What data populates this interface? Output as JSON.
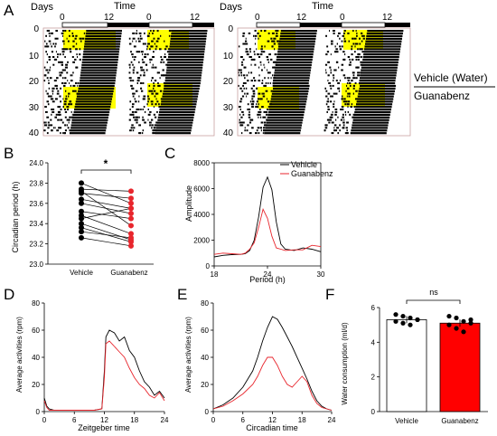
{
  "panels": {
    "A": "A",
    "B": "B",
    "C": "C",
    "D": "D",
    "E": "E",
    "F": "F"
  },
  "actogram": {
    "days_label": "Days",
    "time_label": "Time",
    "time_ticks": [
      "0",
      "12"
    ],
    "day_ticks": [
      "0",
      "10",
      "20",
      "30",
      "40"
    ],
    "legend_vehicle": "Vehicle (Water)",
    "legend_guanabenz": "Guanabenz",
    "yellow_color": "#ffff00"
  },
  "chart_data": [
    {
      "panel": "B",
      "type": "scatter",
      "title": "",
      "xlabel": "",
      "ylabel": "Circadian period (h)",
      "ylim": [
        23.0,
        24.0
      ],
      "yticks": [
        "24.0",
        "23.8",
        "23.6",
        "23.4",
        "23.2",
        "23.0"
      ],
      "categories": [
        "Vehicle",
        "Guanabenz"
      ],
      "significance": "*",
      "paired_values": [
        [
          23.8,
          23.6
        ],
        [
          23.74,
          23.72
        ],
        [
          23.72,
          23.38
        ],
        [
          23.7,
          23.65
        ],
        [
          23.64,
          23.55
        ],
        [
          23.6,
          23.5
        ],
        [
          23.52,
          23.45
        ],
        [
          23.48,
          23.3
        ],
        [
          23.45,
          23.55
        ],
        [
          23.4,
          23.24
        ],
        [
          23.36,
          23.22
        ],
        [
          23.32,
          23.26
        ],
        [
          23.26,
          23.18
        ]
      ],
      "colors": {
        "vehicle": "#000000",
        "guanabenz": "#e8262d"
      }
    },
    {
      "panel": "C",
      "type": "line",
      "title": "",
      "xlabel": "Period (h)",
      "ylabel": "Amplitude",
      "xlim": [
        18,
        30
      ],
      "ylim": [
        0,
        8000
      ],
      "xticks": [
        "18",
        "24",
        "30"
      ],
      "yticks": [
        "8000",
        "6000",
        "4000",
        "2000",
        "0"
      ],
      "series": [
        {
          "name": "Vehicle",
          "color": "#000000",
          "x": [
            18,
            19,
            20,
            21,
            21.5,
            22,
            22.5,
            23,
            23.5,
            24,
            24.5,
            25,
            25.5,
            26,
            27,
            28,
            29,
            30
          ],
          "y": [
            700,
            820,
            880,
            900,
            950,
            1200,
            2000,
            3800,
            6100,
            6900,
            5900,
            3400,
            1700,
            1300,
            1200,
            1400,
            1300,
            1100
          ]
        },
        {
          "name": "Guanabenz",
          "color": "#e8262d",
          "x": [
            18,
            19,
            20,
            21,
            21.5,
            22,
            22.5,
            23,
            23.5,
            24,
            24.5,
            25,
            25.5,
            26,
            27,
            28,
            29,
            30
          ],
          "y": [
            900,
            1000,
            950,
            900,
            1000,
            1300,
            1800,
            3000,
            4400,
            3700,
            2300,
            1400,
            1300,
            1200,
            1250,
            1250,
            1600,
            1500
          ]
        }
      ]
    },
    {
      "panel": "D",
      "type": "line",
      "title": "",
      "xlabel": "Zeitgeber time",
      "ylabel": "Average activities (rpm)",
      "xlim": [
        0,
        24
      ],
      "ylim": [
        0,
        80
      ],
      "xticks": [
        "0",
        "6",
        "12",
        "18",
        "24"
      ],
      "yticks": [
        "80",
        "60",
        "40",
        "20",
        "0"
      ],
      "series": [
        {
          "name": "",
          "color": "#000000",
          "x": [
            0,
            0.5,
            1,
            2,
            4,
            6,
            8,
            10,
            11.5,
            12,
            12.3,
            13,
            14,
            15,
            16,
            17,
            18,
            19,
            20,
            21,
            22,
            23,
            24
          ],
          "y": [
            10,
            4,
            2,
            1,
            1,
            1,
            1,
            1,
            2,
            30,
            55,
            60,
            58,
            52,
            55,
            45,
            40,
            30,
            22,
            18,
            12,
            15,
            10
          ]
        },
        {
          "name": "",
          "color": "#e8262d",
          "x": [
            0,
            0.5,
            1,
            2,
            4,
            6,
            8,
            10,
            11.5,
            12,
            12.3,
            13,
            14,
            15,
            16,
            17,
            18,
            19,
            20,
            21,
            22,
            23,
            24
          ],
          "y": [
            8,
            3,
            1,
            1,
            1,
            1,
            1,
            1,
            2,
            25,
            50,
            52,
            48,
            44,
            40,
            32,
            25,
            20,
            17,
            12,
            10,
            14,
            8
          ]
        }
      ]
    },
    {
      "panel": "E",
      "type": "line",
      "title": "",
      "xlabel": "Circadian time",
      "ylabel": "Average activities (rpm)",
      "xlim": [
        0,
        24
      ],
      "ylim": [
        0,
        80
      ],
      "xticks": [
        "0",
        "6",
        "12",
        "18",
        "24"
      ],
      "yticks": [
        "80",
        "60",
        "40",
        "20",
        "0"
      ],
      "series": [
        {
          "name": "",
          "color": "#000000",
          "x": [
            0,
            2,
            4,
            6,
            8,
            9,
            10,
            11,
            12,
            13,
            14,
            15,
            16,
            17,
            18,
            19,
            20,
            21,
            22,
            23,
            24
          ],
          "y": [
            2,
            5,
            10,
            18,
            30,
            40,
            52,
            62,
            70,
            68,
            62,
            55,
            48,
            40,
            32,
            24,
            15,
            8,
            4,
            2,
            1
          ]
        },
        {
          "name": "",
          "color": "#e8262d",
          "x": [
            0,
            2,
            4,
            6,
            8,
            9,
            10,
            11,
            12,
            13,
            14,
            15,
            16,
            17,
            18,
            19,
            20,
            21,
            22,
            23,
            24
          ],
          "y": [
            2,
            4,
            8,
            13,
            20,
            26,
            34,
            40,
            40,
            34,
            26,
            20,
            18,
            22,
            26,
            22,
            12,
            6,
            3,
            2,
            1
          ]
        }
      ]
    },
    {
      "panel": "F",
      "type": "bar",
      "title": "",
      "xlabel": "",
      "ylabel": "Water consumption (ml/d)",
      "ylim": [
        0,
        6
      ],
      "yticks": [
        "6",
        "4",
        "2",
        "0"
      ],
      "categories": [
        "Vehicle",
        "Guanabenz"
      ],
      "values": [
        5.3,
        5.1
      ],
      "significance": "ns",
      "points": [
        [
          5.6,
          5.5,
          5.4,
          5.3,
          5.2,
          5.1,
          5.0,
          5.3
        ],
        [
          5.5,
          5.4,
          5.2,
          5.1,
          5.0,
          4.8,
          4.6,
          5.3
        ]
      ],
      "colors": [
        "#ffffff",
        "#ff0000"
      ]
    }
  ]
}
